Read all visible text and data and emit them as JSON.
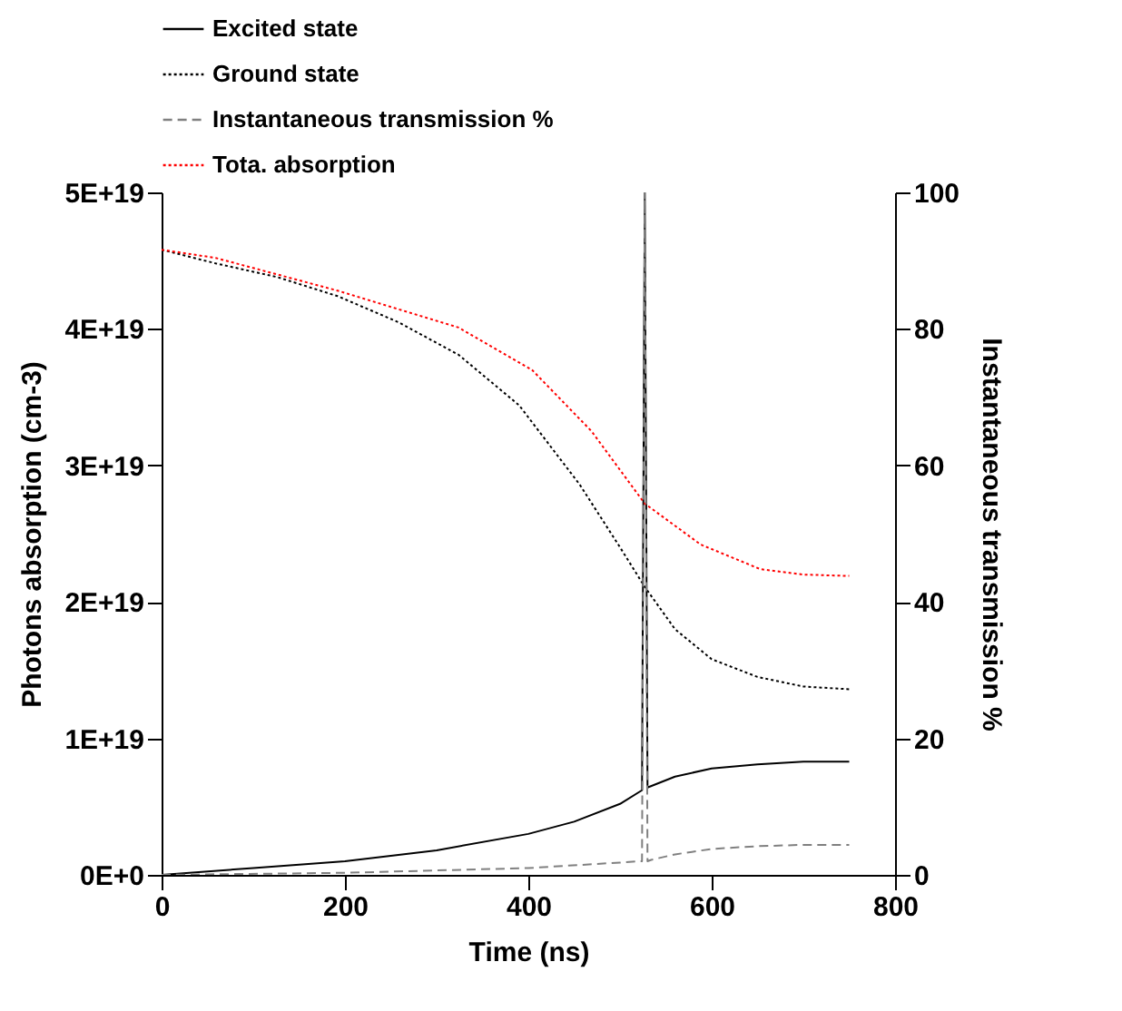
{
  "chart_data": {
    "type": "line",
    "xlabel": "Time (ns)",
    "ylabel": "Photons absorption (cm-3)",
    "y2label": "Instantaneous transmission %",
    "xlim": [
      0,
      800
    ],
    "xticks": [
      0,
      200,
      400,
      600,
      800
    ],
    "ylim": [
      0,
      5e+19
    ],
    "yticks": [
      {
        "value": 0,
        "label": "0E+0"
      },
      {
        "value": 1e+19,
        "label": "1E+19"
      },
      {
        "value": 2e+19,
        "label": "2E+19"
      },
      {
        "value": 3e+19,
        "label": "3E+19"
      },
      {
        "value": 4e+19,
        "label": "4E+19"
      },
      {
        "value": 5e+19,
        "label": "5E+19"
      }
    ],
    "y2lim": [
      0,
      100
    ],
    "y2ticks": [
      0,
      20,
      40,
      60,
      80,
      100
    ],
    "grid": false,
    "legend": "top",
    "series": [
      {
        "name": "Excited state",
        "color": "#000000",
        "line_style": "solid",
        "x": [
          0,
          100,
          200,
          300,
          400,
          450,
          500,
          524,
          527,
          530,
          560,
          600,
          650,
          700,
          750
        ],
        "values": [
          0,
          5e+17,
          1e+18,
          1.8e+18,
          3e+18,
          3.9e+18,
          5.2e+18,
          6.2e+18,
          5e+19,
          6.4e+18,
          7.2e+18,
          7.8e+18,
          8.1e+18,
          8.3e+18,
          8.3e+18
        ]
      },
      {
        "name": "Ground state",
        "color": "#000000",
        "line_style": "dotted",
        "x": [
          0,
          59,
          126,
          192,
          258,
          324,
          390,
          456,
          500,
          527,
          560,
          600,
          650,
          700,
          750
        ],
        "values": [
          4.58e+19,
          4.48e+19,
          4.38e+19,
          4.24e+19,
          4.05e+19,
          3.81e+19,
          3.44e+19,
          2.86e+19,
          2.4e+19,
          2.11e+19,
          1.8e+19,
          1.58e+19,
          1.45e+19,
          1.38e+19,
          1.36e+19
        ]
      },
      {
        "name": "Instantaneous transmission %",
        "color": "#808080",
        "line_style": "dashed",
        "axis": "y2",
        "x": [
          0,
          200,
          400,
          500,
          520,
          524,
          527,
          530,
          534,
          560,
          600,
          650,
          700,
          750
        ],
        "values": [
          0,
          0.3,
          1,
          1.8,
          2,
          2,
          100,
          2,
          2.2,
          3,
          3.8,
          4.2,
          4.4,
          4.4
        ]
      },
      {
        "name": "Tota. absorption",
        "color": "#ff0000",
        "line_style": "dotted",
        "x": [
          0,
          59,
          192,
          324,
          404,
          469,
          527,
          588,
          653,
          700,
          750
        ],
        "values": [
          4.58e+19,
          4.52e+19,
          4.28e+19,
          4.01e+19,
          3.7e+19,
          3.25e+19,
          2.72e+19,
          2.42e+19,
          2.24e+19,
          2.2e+19,
          2.19e+19
        ]
      }
    ]
  }
}
